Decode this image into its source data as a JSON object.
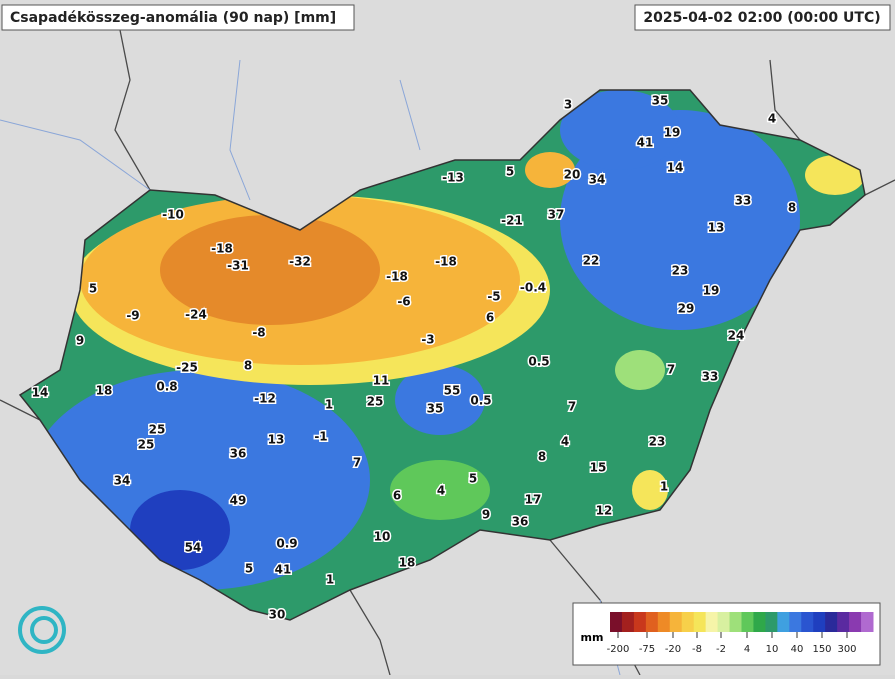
{
  "header": {
    "title": "Csapadékösszeg-anomália (90 nap) [mm]",
    "timestamp": "2025-04-02 02:00 (00:00 UTC)"
  },
  "labels": [
    3,
    35,
    19,
    41,
    14,
    4,
    5,
    20,
    34,
    -13,
    33,
    8,
    -10,
    -21,
    37,
    13,
    -18,
    -31,
    -32,
    22,
    23,
    -18,
    -18,
    19,
    5,
    -6,
    -5,
    -0.4,
    29,
    -9,
    -24,
    -8,
    6,
    9,
    -3,
    24,
    0.5,
    -25,
    8,
    7,
    11,
    33,
    0.8,
    14,
    18,
    55,
    -12,
    25,
    0.5,
    1,
    35,
    7,
    25,
    -1,
    13,
    4,
    23,
    25,
    36,
    8,
    7,
    15,
    34,
    5,
    4,
    1,
    6,
    49,
    17,
    9,
    12,
    36,
    10,
    0.9,
    54,
    18,
    5,
    41,
    1,
    30
  ],
  "legend": {
    "unit": "mm",
    "ticks": [
      -200,
      -75,
      -20,
      -8,
      -2,
      4,
      10,
      40,
      150,
      300
    ]
  }
}
